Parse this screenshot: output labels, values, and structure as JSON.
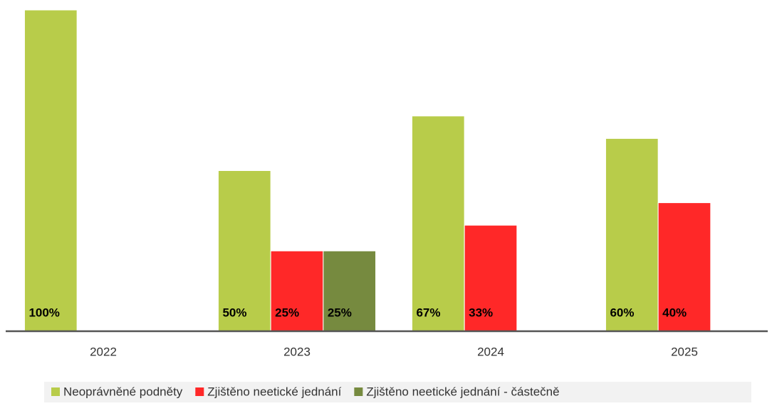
{
  "chart_data": {
    "type": "bar",
    "categories": [
      "2022",
      "2023",
      "2024",
      "2025"
    ],
    "series": [
      {
        "name": "Neoprávněné podněty",
        "color": "#b8cc4a",
        "values": [
          100,
          50,
          67,
          60
        ],
        "value_labels": [
          "100%",
          "50%",
          "67%",
          "60%"
        ]
      },
      {
        "name": "Zjištěno neetické jednání",
        "color": "#ff2828",
        "values": [
          null,
          25,
          33,
          40
        ],
        "value_labels": [
          null,
          "25%",
          "33%",
          "40%"
        ]
      },
      {
        "name": "Zjištěno neetické jednání - částečně",
        "color": "#768a3f",
        "values": [
          null,
          25,
          null,
          null
        ],
        "value_labels": [
          null,
          "25%",
          null,
          null
        ]
      }
    ],
    "ylim": [
      0,
      100
    ],
    "legend": "bottom"
  }
}
